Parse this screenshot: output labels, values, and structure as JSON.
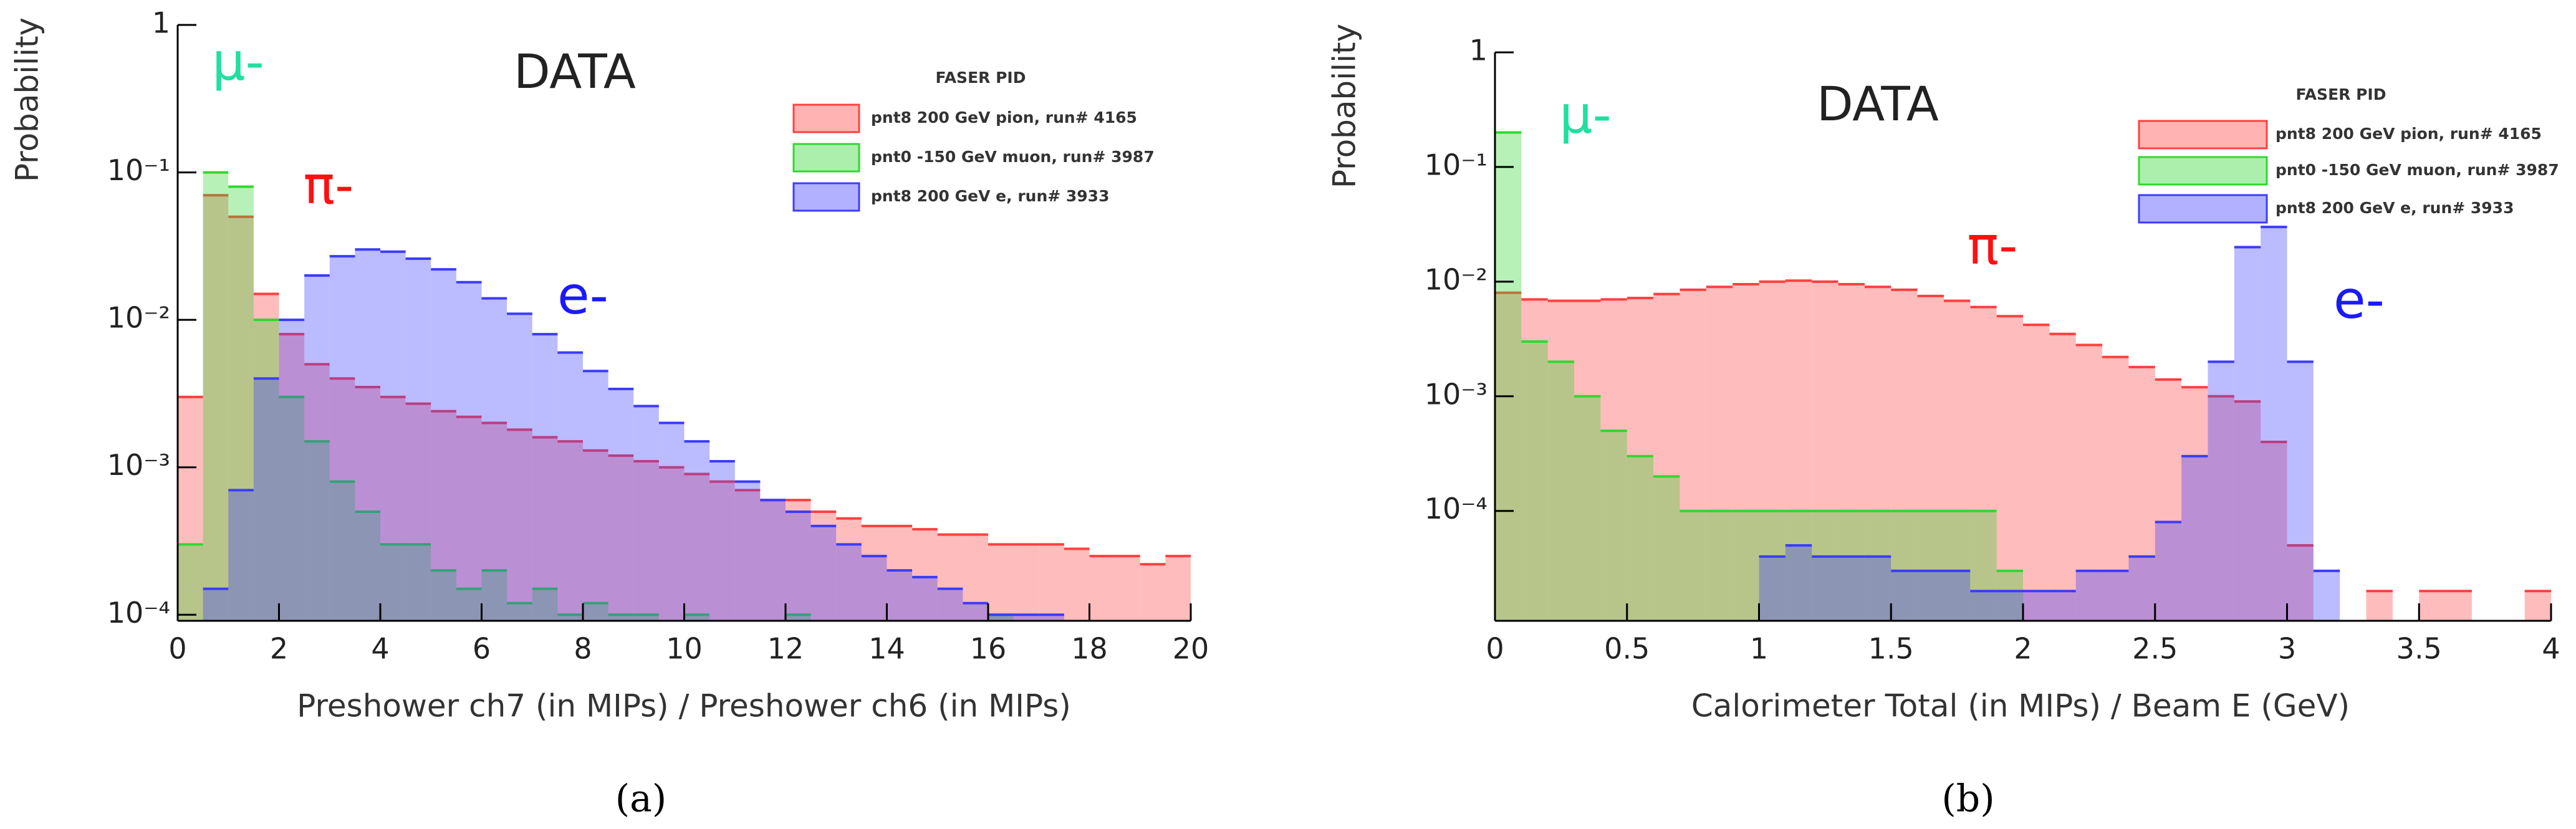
{
  "chart_data": [
    {
      "type": "histogram",
      "log": true,
      "caption": "(a)",
      "label": "DATA",
      "legend_title": "FASER PID",
      "xlabel": "Preshower ch7 (in MIPs) / Preshower ch6 (in MIPs)",
      "ylabel": "Probability",
      "xlim": [
        0,
        20
      ],
      "xticks": [
        0,
        2,
        4,
        6,
        8,
        10,
        12,
        14,
        16,
        18,
        20
      ],
      "ylim": [
        9.1e-05,
        1
      ],
      "yticks": [
        {
          "value": 0.0001,
          "label": "10⁻⁴"
        },
        {
          "value": 0.001,
          "label": "10⁻³"
        },
        {
          "value": 0.01,
          "label": "10⁻²"
        },
        {
          "value": 0.1,
          "label": "10⁻¹"
        },
        1
      ],
      "annotations": [
        {
          "text": "μ-",
          "color": "#20e0a0"
        },
        {
          "text": "π-",
          "color": "#ff1010"
        },
        {
          "text": "e-",
          "color": "#1a1aff"
        }
      ],
      "bins": [
        0,
        0.5,
        1,
        1.5,
        2,
        2.5,
        3,
        3.5,
        4,
        4.5,
        5,
        5.5,
        6,
        6.5,
        7,
        7.5,
        8,
        8.5,
        9,
        9.5,
        10,
        10.5,
        11,
        11.5,
        12,
        12.5,
        13,
        13.5,
        14,
        14.5,
        15,
        15.5,
        16,
        16.5,
        17,
        17.5,
        18,
        18.5,
        19,
        19.5,
        20
      ],
      "series": [
        {
          "name": "pnt8 200 GeV pion, run# 4165",
          "color": "#ff4040",
          "values": [
            0.003,
            0.07,
            0.05,
            0.015,
            0.008,
            0.005,
            0.004,
            0.0035,
            0.003,
            0.0027,
            0.0024,
            0.0022,
            0.002,
            0.0018,
            0.0016,
            0.0015,
            0.0013,
            0.0012,
            0.0011,
            0.001,
            0.0009,
            0.0008,
            0.0007,
            0.0006,
            0.0006,
            0.0005,
            0.00045,
            0.0004,
            0.0004,
            0.00038,
            0.00035,
            0.00035,
            0.0003,
            0.0003,
            0.0003,
            0.00028,
            0.00025,
            0.00025,
            0.00022,
            0.00025
          ]
        },
        {
          "name": "pnt0 -150 GeV muon, run# 3987",
          "color": "#30d830",
          "values": [
            0.0003,
            0.1,
            0.08,
            0.01,
            0.003,
            0.0015,
            0.0008,
            0.0005,
            0.0003,
            0.0003,
            0.0002,
            0.00015,
            0.0002,
            0.00012,
            0.00015,
            0.0001,
            0.00012,
            0.0001,
            0.0001,
            null,
            0.0001,
            null,
            null,
            null,
            0.0001,
            null,
            null,
            null,
            null,
            null,
            null,
            null,
            0.0001,
            null,
            null,
            null,
            null,
            null,
            null,
            null
          ]
        },
        {
          "name": "pnt8 200 GeV e, run# 3933",
          "color": "#3c3cff",
          "values": [
            null,
            0.00015,
            0.0007,
            0.004,
            0.01,
            0.02,
            0.027,
            0.03,
            0.029,
            0.026,
            0.022,
            0.018,
            0.014,
            0.011,
            0.008,
            0.006,
            0.0045,
            0.0034,
            0.0026,
            0.002,
            0.0015,
            0.0011,
            0.0008,
            0.0006,
            0.0005,
            0.0004,
            0.0003,
            0.00025,
            0.0002,
            0.00018,
            0.00015,
            0.00012,
            0.0001,
            0.0001,
            0.0001,
            null,
            null,
            null,
            null,
            null
          ]
        }
      ]
    },
    {
      "type": "histogram",
      "log": true,
      "caption": "(b)",
      "label": "DATA",
      "legend_title": "FASER PID",
      "xlabel": "Calorimeter Total (in MIPs) / Beam E (GeV)",
      "ylabel": "Probability",
      "xlim": [
        0,
        4
      ],
      "xticks": [
        0,
        0.5,
        1,
        1.5,
        2,
        2.5,
        3,
        3.5,
        4
      ],
      "ylim": [
        1.1e-05,
        1
      ],
      "yticks": [
        {
          "value": 0.0001,
          "label": "10⁻⁴"
        },
        {
          "value": 0.001,
          "label": "10⁻³"
        },
        {
          "value": 0.01,
          "label": "10⁻²"
        },
        {
          "value": 0.1,
          "label": "10⁻¹"
        },
        1
      ],
      "annotations": [
        {
          "text": "μ-",
          "color": "#20e0a0"
        },
        {
          "text": "π-",
          "color": "#ff1010"
        },
        {
          "text": "e-",
          "color": "#1a1aff"
        }
      ],
      "bins": [
        0,
        0.1,
        0.2,
        0.3,
        0.4,
        0.5,
        0.6,
        0.7,
        0.8,
        0.9,
        1.0,
        1.1,
        1.2,
        1.3,
        1.4,
        1.5,
        1.6,
        1.7,
        1.8,
        1.9,
        2.0,
        2.1,
        2.2,
        2.3,
        2.4,
        2.5,
        2.6,
        2.7,
        2.8,
        2.9,
        3.0,
        3.1,
        3.2,
        3.3,
        3.4,
        3.5,
        3.6,
        3.7,
        3.8,
        3.9,
        4.0
      ],
      "series": [
        {
          "name": "pnt8 200 GeV pion, run# 4165",
          "color": "#ff4040",
          "values": [
            0.008,
            0.007,
            0.0068,
            0.0068,
            0.007,
            0.0072,
            0.0078,
            0.0085,
            0.009,
            0.0095,
            0.01,
            0.0102,
            0.01,
            0.0095,
            0.009,
            0.0085,
            0.0075,
            0.0068,
            0.006,
            0.005,
            0.0042,
            0.0035,
            0.0028,
            0.0022,
            0.0018,
            0.0014,
            0.0012,
            0.001,
            0.0009,
            0.0004,
            5e-05,
            null,
            null,
            2e-05,
            null,
            2e-05,
            2e-05,
            null,
            null,
            2e-05
          ]
        },
        {
          "name": "pnt0 -150 GeV muon, run# 3987",
          "color": "#30d830",
          "values": [
            0.2,
            0.003,
            0.002,
            0.001,
            0.0005,
            0.0003,
            0.0002,
            0.0001,
            0.0001,
            0.0001,
            0.0001,
            0.0001,
            0.0001,
            0.0001,
            0.0001,
            0.0001,
            0.0001,
            0.0001,
            0.0001,
            3e-05,
            null,
            null,
            null,
            null,
            null,
            null,
            null,
            null,
            null,
            null,
            null,
            null,
            null,
            null,
            null,
            null,
            null,
            null,
            null,
            null
          ]
        },
        {
          "name": "pnt8 200 GeV e, run# 3933",
          "color": "#3c3cff",
          "values": [
            null,
            null,
            null,
            null,
            null,
            null,
            null,
            null,
            null,
            null,
            4e-05,
            5e-05,
            4e-05,
            4e-05,
            4e-05,
            3e-05,
            3e-05,
            3e-05,
            2e-05,
            2e-05,
            2e-05,
            2e-05,
            3e-05,
            3e-05,
            4e-05,
            8e-05,
            0.0003,
            0.002,
            0.02,
            0.03,
            0.002,
            3e-05,
            null,
            null,
            null,
            null,
            null,
            null,
            null,
            null
          ]
        }
      ]
    }
  ]
}
